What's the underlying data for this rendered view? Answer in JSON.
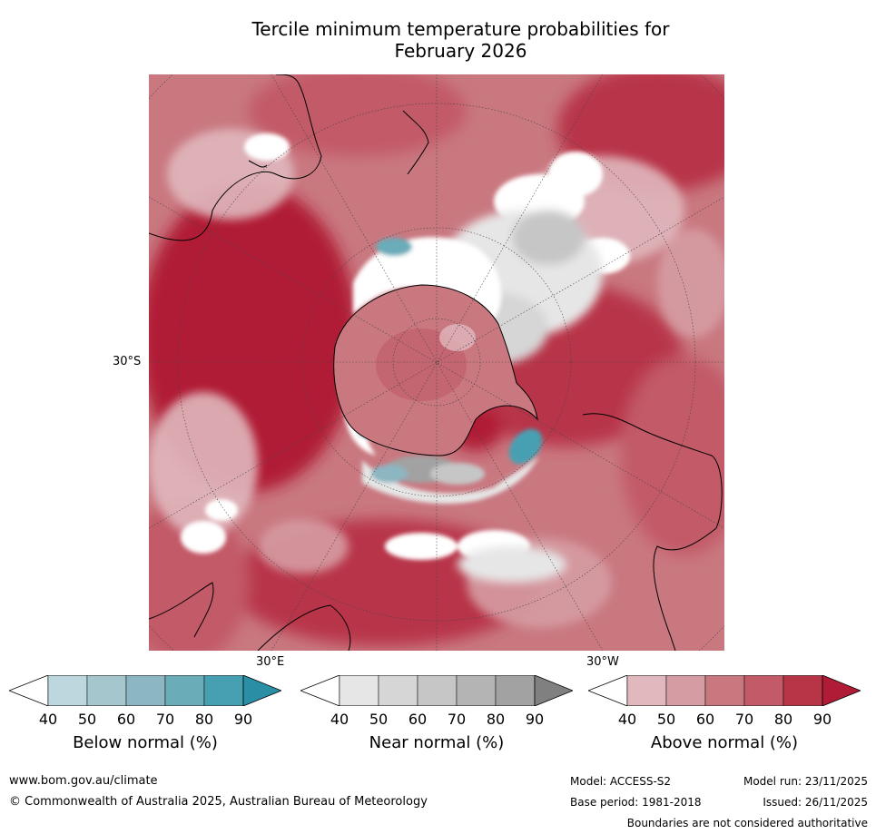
{
  "title": {
    "line1": "Tercile minimum temperature probabilities for",
    "line2": "February 2026"
  },
  "map": {
    "projection": "south-polar-stereographic",
    "lat_label": "30°S",
    "lon_labels": [
      "30°E",
      "30°W"
    ]
  },
  "colorbars": [
    {
      "label": "Below normal (%)",
      "ticks": [
        "40",
        "50",
        "60",
        "70",
        "80",
        "90"
      ],
      "colors": [
        "#ffffff",
        "#bdd7de",
        "#a6c6cd",
        "#8cb6c2",
        "#6bacb9",
        "#47a0b2",
        "#2a8fa5"
      ]
    },
    {
      "label": "Near normal (%)",
      "ticks": [
        "40",
        "50",
        "60",
        "70",
        "80",
        "90"
      ],
      "colors": [
        "#ffffff",
        "#e6e6e6",
        "#d6d6d6",
        "#c6c6c6",
        "#b4b4b4",
        "#a2a2a2",
        "#808080"
      ]
    },
    {
      "label": "Above normal (%)",
      "ticks": [
        "40",
        "50",
        "60",
        "70",
        "80",
        "90"
      ],
      "colors": [
        "#ffffff",
        "#e0b8bd",
        "#d69ca3",
        "#c97880",
        "#c25a68",
        "#b83548",
        "#b01c36"
      ]
    }
  ],
  "footer": {
    "website": "www.bom.gov.au/climate",
    "copyright": "© Commonwealth of Australia 2025, Australian Bureau of Meteorology",
    "model": "Model: ACCESS-S2",
    "model_run": "Model run: 23/11/2025",
    "base_period": "Base period: 1981-2018",
    "issued": "Issued: 26/11/2025",
    "disclaimer": "Boundaries are not considered authoritative"
  }
}
